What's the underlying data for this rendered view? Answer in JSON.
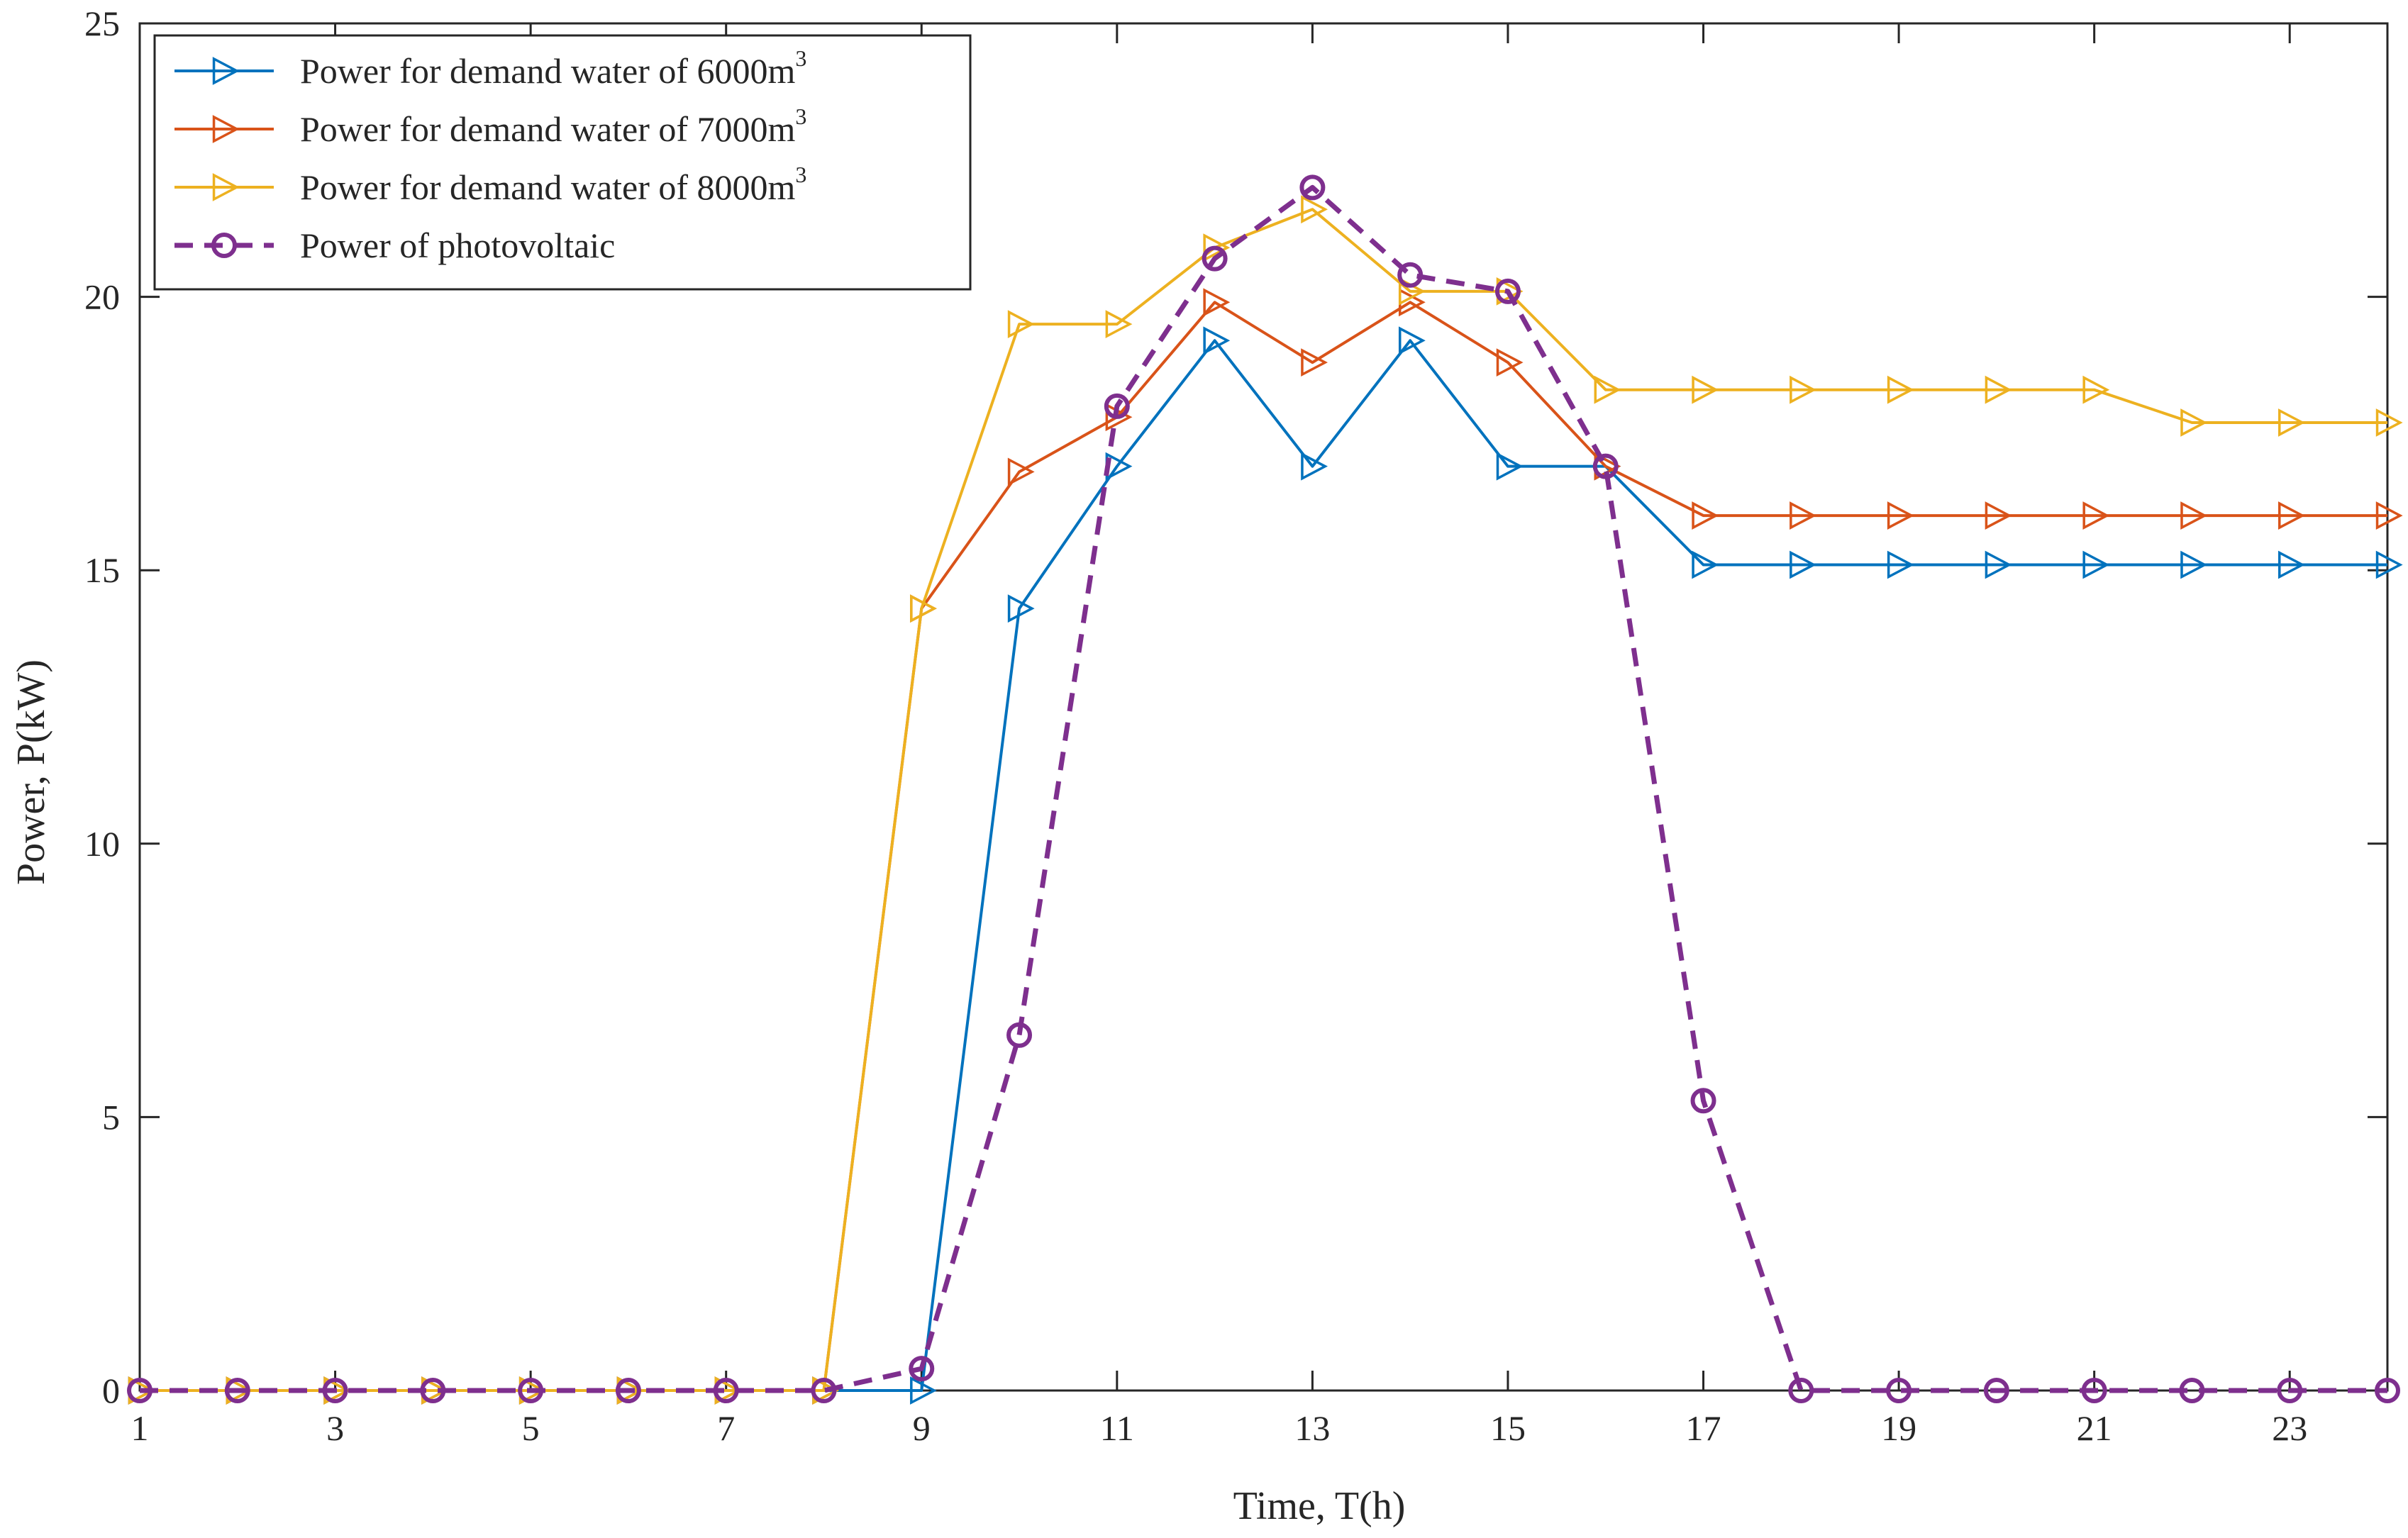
{
  "chart_data": {
    "type": "line",
    "title": "",
    "xlabel": "Time, T(h)",
    "ylabel": "Power, P(kW)",
    "xlim": [
      1,
      24
    ],
    "ylim": [
      0,
      25
    ],
    "xticks": [
      1,
      3,
      5,
      7,
      9,
      11,
      13,
      15,
      17,
      19,
      21,
      23
    ],
    "yticks": [
      0,
      5,
      10,
      15,
      20,
      25
    ],
    "xtick_labels": [
      "1",
      "3",
      "5",
      "7",
      "9",
      "11",
      "13",
      "15",
      "17",
      "19",
      "21",
      "23"
    ],
    "ytick_labels": [
      "0",
      "5",
      "10",
      "15",
      "20",
      "25"
    ],
    "grid": false,
    "legend_position": "top-left",
    "x": [
      1,
      2,
      3,
      4,
      5,
      6,
      7,
      8,
      9,
      10,
      11,
      12,
      13,
      14,
      15,
      16,
      17,
      18,
      19,
      20,
      21,
      22,
      23,
      24
    ],
    "series": [
      {
        "name": "Power for demand water of 6000m3",
        "label_text": "Power for demand water of 6000m",
        "label_sup": "3",
        "color": "#0072BD",
        "marker": "triangle-right",
        "dash": "solid",
        "values": [
          0,
          0,
          0,
          0,
          0,
          0,
          0,
          0,
          0,
          14.3,
          16.9,
          19.2,
          16.9,
          19.2,
          16.9,
          16.9,
          15.1,
          15.1,
          15.1,
          15.1,
          15.1,
          15.1,
          15.1,
          15.1
        ]
      },
      {
        "name": "Power for demand water of 7000m3",
        "label_text": "Power for demand water of 7000m",
        "label_sup": "3",
        "color": "#D95319",
        "marker": "triangle-right",
        "dash": "solid",
        "values": [
          0,
          0,
          0,
          0,
          0,
          0,
          0,
          0,
          14.3,
          16.8,
          17.8,
          19.9,
          18.8,
          19.9,
          18.8,
          16.9,
          16.0,
          16.0,
          16.0,
          16.0,
          16.0,
          16.0,
          16.0,
          16.0
        ]
      },
      {
        "name": "Power for demand water of 8000m3",
        "label_text": "Power for demand water of 8000m",
        "label_sup": "3",
        "color": "#EDB120",
        "marker": "triangle-right",
        "dash": "solid",
        "values": [
          0,
          0,
          0,
          0,
          0,
          0,
          0,
          0,
          14.3,
          19.5,
          19.5,
          20.9,
          21.6,
          20.1,
          20.1,
          18.3,
          18.3,
          18.3,
          18.3,
          18.3,
          18.3,
          17.7,
          17.7,
          17.7
        ]
      },
      {
        "name": "Power of photovoltaic",
        "label_text": "Power of photovoltaic",
        "label_sup": "",
        "color": "#7E2F8E",
        "marker": "circle",
        "dash": "dashed",
        "values": [
          0,
          0,
          0,
          0,
          0,
          0,
          0,
          0,
          0.4,
          6.5,
          18.0,
          20.7,
          22.0,
          20.4,
          20.1,
          16.9,
          5.3,
          0,
          0,
          0,
          0,
          0,
          0,
          0
        ]
      }
    ]
  }
}
